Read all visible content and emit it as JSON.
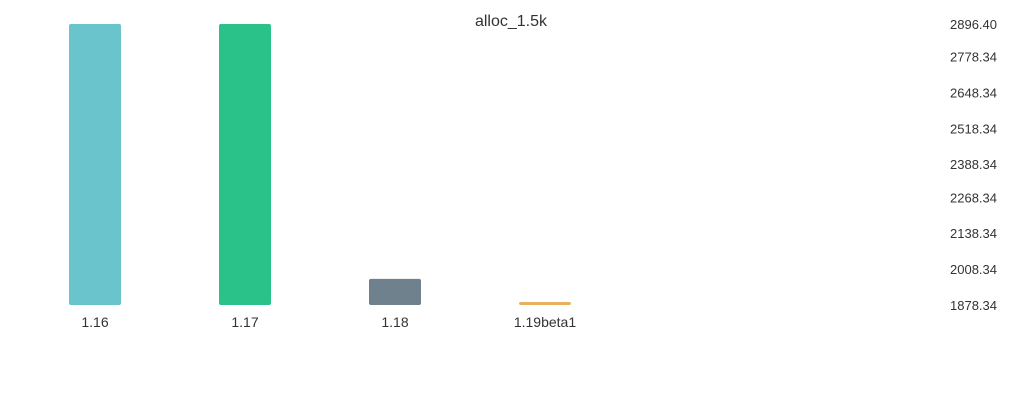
{
  "chart_data": {
    "type": "bar",
    "title": "alloc_1.5k",
    "xlabel": "",
    "ylabel": "",
    "categories": [
      "1.16",
      "1.17",
      "1.18",
      "1.19beta1"
    ],
    "values": [
      2896.4,
      2896.4,
      1973.0,
      1885.0
    ],
    "colors": [
      "#6ac4cb",
      "#2bc28a",
      "#6e818c",
      "#e8b060"
    ],
    "ylim": [
      1878.34,
      2896.4
    ],
    "yticks": [
      "2896.40",
      "2778.34",
      "2648.34",
      "2518.34",
      "2388.34",
      "2268.34",
      "2138.34",
      "2008.34",
      "1878.34"
    ],
    "grid": false,
    "legend": "none",
    "yaxis_side": "right"
  }
}
